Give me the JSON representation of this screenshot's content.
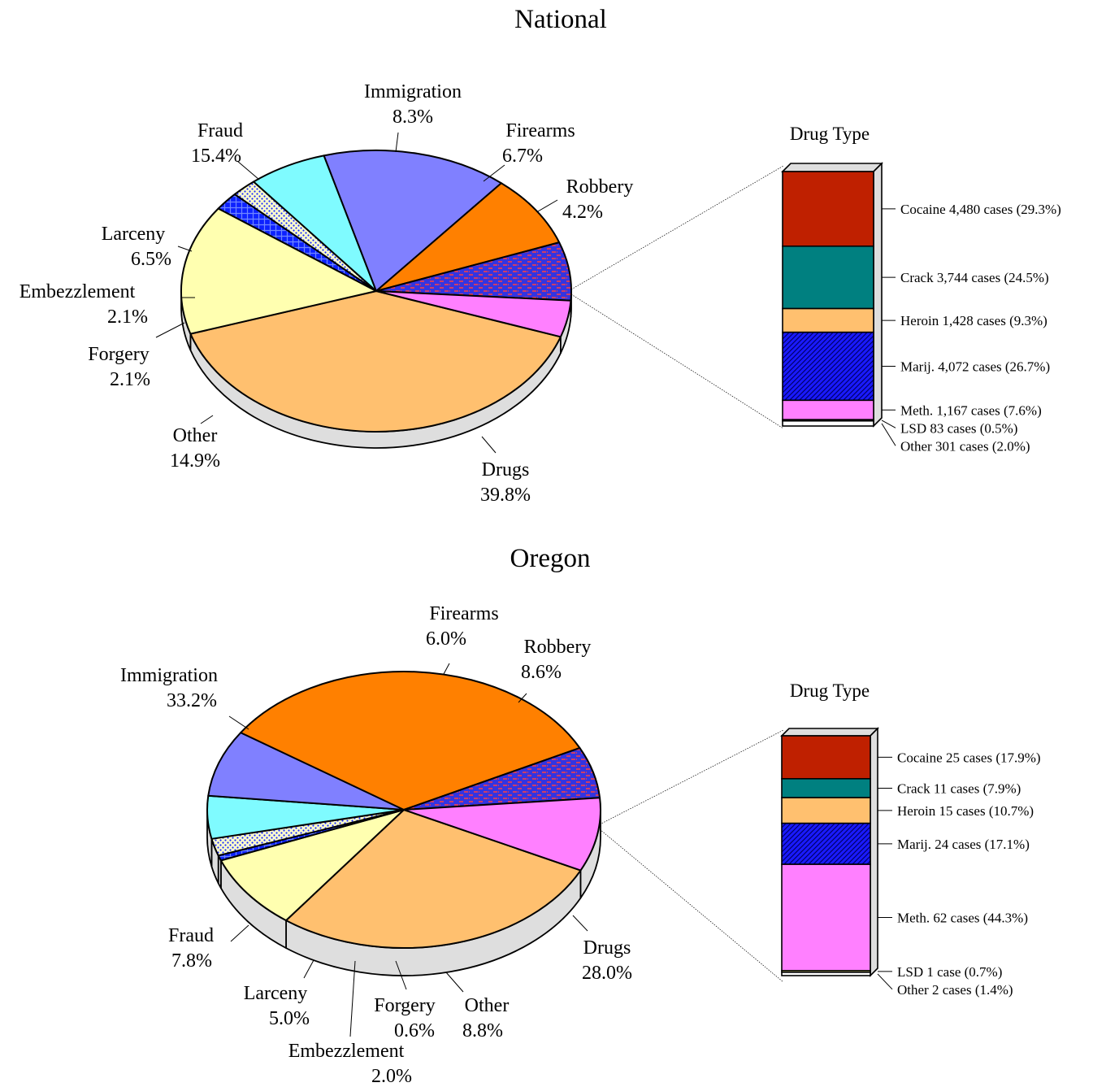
{
  "chart_data": [
    {
      "type": "pie",
      "title": "National",
      "slices": [
        {
          "label": "Drugs",
          "value": 39.8,
          "value_label": "39.8%",
          "color": "#ffc06f",
          "pattern": "none"
        },
        {
          "label": "Other",
          "value": 14.9,
          "value_label": "14.9%",
          "color": "#ffffb0",
          "pattern": "none"
        },
        {
          "label": "Forgery",
          "value": 2.1,
          "value_label": "2.1%",
          "color": "#0d22ff",
          "pattern": "grid"
        },
        {
          "label": "Embezzlement",
          "value": 2.1,
          "value_label": "2.1%",
          "color": "#ffffcc",
          "pattern": "dots"
        },
        {
          "label": "Larceny",
          "value": 6.5,
          "value_label": "6.5%",
          "color": "#7ffbff",
          "pattern": "none"
        },
        {
          "label": "Fraud",
          "value": 15.4,
          "value_label": "15.4%",
          "color": "#8080ff",
          "pattern": "none"
        },
        {
          "label": "Immigration",
          "value": 8.3,
          "value_label": "8.3%",
          "color": "#ff8000",
          "pattern": "none"
        },
        {
          "label": "Firearms",
          "value": 6.7,
          "value_label": "6.7%",
          "color": "#3434e0",
          "pattern": "brick"
        },
        {
          "label": "Robbery",
          "value": 4.2,
          "value_label": "4.2%",
          "color": "#ff80ff",
          "pattern": "none"
        }
      ],
      "breakdown": {
        "title": "Drug Type",
        "segments": [
          {
            "label": "Cocaine  4,480 cases (29.3%)",
            "value": 29.3,
            "color": "#bf2000",
            "pattern": "none"
          },
          {
            "label": "Crack  3,744 cases (24.5%)",
            "value": 24.5,
            "color": "#008080",
            "pattern": "none"
          },
          {
            "label": "Heroin  1,428 cases (9.3%)",
            "value": 9.3,
            "color": "#ffc06f",
            "pattern": "none"
          },
          {
            "label": "Marij.  4,072 cases (26.7%)",
            "value": 26.7,
            "color": "#1a1aff",
            "pattern": "hatch"
          },
          {
            "label": "Meth.  1,167 cases (7.6%)",
            "value": 7.6,
            "color": "#ff80ff",
            "pattern": "none"
          },
          {
            "label": "LSD  83 cases (0.5%)",
            "value": 0.5,
            "color": "#ffff99",
            "pattern": "none"
          },
          {
            "label": "Other  301 cases (2.0%)",
            "value": 2.0,
            "color": "#ffffff",
            "pattern": "none"
          }
        ]
      }
    },
    {
      "type": "pie",
      "title": "Oregon",
      "slices": [
        {
          "label": "Drugs",
          "value": 28.0,
          "value_label": "28.0%",
          "color": "#ffc06f",
          "pattern": "none"
        },
        {
          "label": "Other",
          "value": 8.8,
          "value_label": "8.8%",
          "color": "#ffffb0",
          "pattern": "none"
        },
        {
          "label": "Forgery",
          "value": 0.6,
          "value_label": "0.6%",
          "color": "#0d22ff",
          "pattern": "grid"
        },
        {
          "label": "Embezzlement",
          "value": 2.0,
          "value_label": "2.0%",
          "color": "#ffffcc",
          "pattern": "dots"
        },
        {
          "label": "Larceny",
          "value": 5.0,
          "value_label": "5.0%",
          "color": "#7ffbff",
          "pattern": "none"
        },
        {
          "label": "Fraud",
          "value": 7.8,
          "value_label": "7.8%",
          "color": "#8080ff",
          "pattern": "none"
        },
        {
          "label": "Immigration",
          "value": 33.2,
          "value_label": "33.2%",
          "color": "#ff8000",
          "pattern": "none"
        },
        {
          "label": "Firearms",
          "value": 6.0,
          "value_label": "6.0%",
          "color": "#3434e0",
          "pattern": "brick"
        },
        {
          "label": "Robbery",
          "value": 8.6,
          "value_label": "8.6%",
          "color": "#ff80ff",
          "pattern": "none"
        }
      ],
      "breakdown": {
        "title": "Drug Type",
        "segments": [
          {
            "label": "Cocaine 25 cases (17.9%)",
            "value": 17.9,
            "color": "#bf2000",
            "pattern": "none"
          },
          {
            "label": "Crack 11 cases (7.9%)",
            "value": 7.9,
            "color": "#008080",
            "pattern": "none"
          },
          {
            "label": "Heroin 15 cases (10.7%)",
            "value": 10.7,
            "color": "#ffc06f",
            "pattern": "none"
          },
          {
            "label": "Marij. 24 cases (17.1%)",
            "value": 17.1,
            "color": "#1a1aff",
            "pattern": "hatch"
          },
          {
            "label": "Meth. 62 cases (44.3%)",
            "value": 44.3,
            "color": "#ff80ff",
            "pattern": "none"
          },
          {
            "label": "LSD 1 case (0.7%)",
            "value": 0.7,
            "color": "#ffff99",
            "pattern": "none"
          },
          {
            "label": "Other  2 cases (1.4%)",
            "value": 1.4,
            "color": "#ffffff",
            "pattern": "none"
          }
        ]
      }
    }
  ]
}
